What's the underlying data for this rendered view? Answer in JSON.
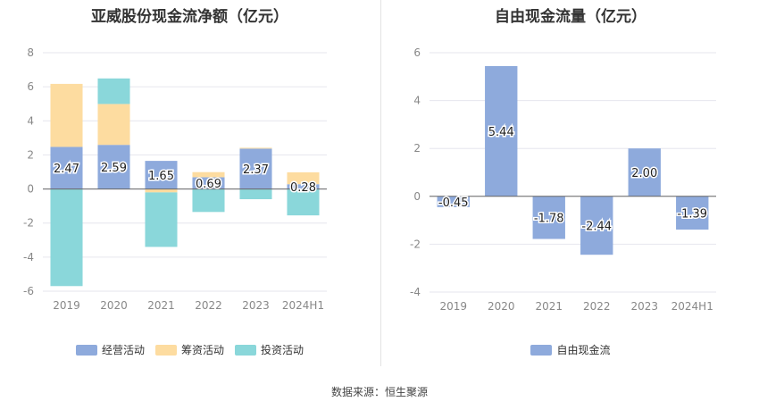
{
  "charts": {
    "left": {
      "title": "亚威股份现金流净额（亿元）",
      "legend": [
        {
          "label": "经营活动",
          "color": "#8eaadc"
        },
        {
          "label": "筹资活动",
          "color": "#fddca0"
        },
        {
          "label": "投资活动",
          "color": "#8ad7da"
        }
      ]
    },
    "right": {
      "title": "自由现金流量（亿元）",
      "legend": [
        {
          "label": "自由现金流",
          "color": "#8eaadc"
        }
      ]
    }
  },
  "source": "数据来源：恒生聚源",
  "chart_data": [
    {
      "type": "bar",
      "stacked": true,
      "title": "亚威股份现金流净额（亿元）",
      "categories": [
        "2019",
        "2020",
        "2021",
        "2022",
        "2023",
        "2024H1"
      ],
      "ylim": [
        -6,
        8
      ],
      "yticks": [
        -6,
        -4,
        -2,
        0,
        2,
        4,
        6,
        8
      ],
      "grid": true,
      "legend_position": "bottom",
      "series": [
        {
          "name": "经营活动",
          "color": "#8eaadc",
          "values": [
            2.47,
            2.59,
            1.65,
            0.69,
            2.37,
            0.28
          ],
          "labels": [
            "2.47",
            "2.59",
            "1.65",
            "0.69",
            "2.37",
            "0.28"
          ]
        },
        {
          "name": "筹资活动",
          "color": "#fddca0",
          "values": [
            3.7,
            2.4,
            -0.2,
            0.3,
            0.05,
            0.7
          ]
        },
        {
          "name": "投资活动",
          "color": "#8ad7da",
          "values": [
            -5.7,
            1.5,
            -3.2,
            -1.35,
            -0.6,
            -1.55
          ]
        }
      ]
    },
    {
      "type": "bar",
      "title": "自由现金流量（亿元）",
      "categories": [
        "2019",
        "2020",
        "2021",
        "2022",
        "2023",
        "2024H1"
      ],
      "ylim": [
        -4,
        6
      ],
      "yticks": [
        -4,
        -2,
        0,
        2,
        4,
        6
      ],
      "grid": true,
      "legend_position": "bottom",
      "series": [
        {
          "name": "自由现金流",
          "color": "#8eaadc",
          "values": [
            -0.45,
            5.44,
            -1.78,
            -2.44,
            2.0,
            -1.39
          ],
          "labels": [
            "-0.45",
            "5.44",
            "-1.78",
            "-2.44",
            "2.00",
            "-1.39"
          ]
        }
      ]
    }
  ]
}
